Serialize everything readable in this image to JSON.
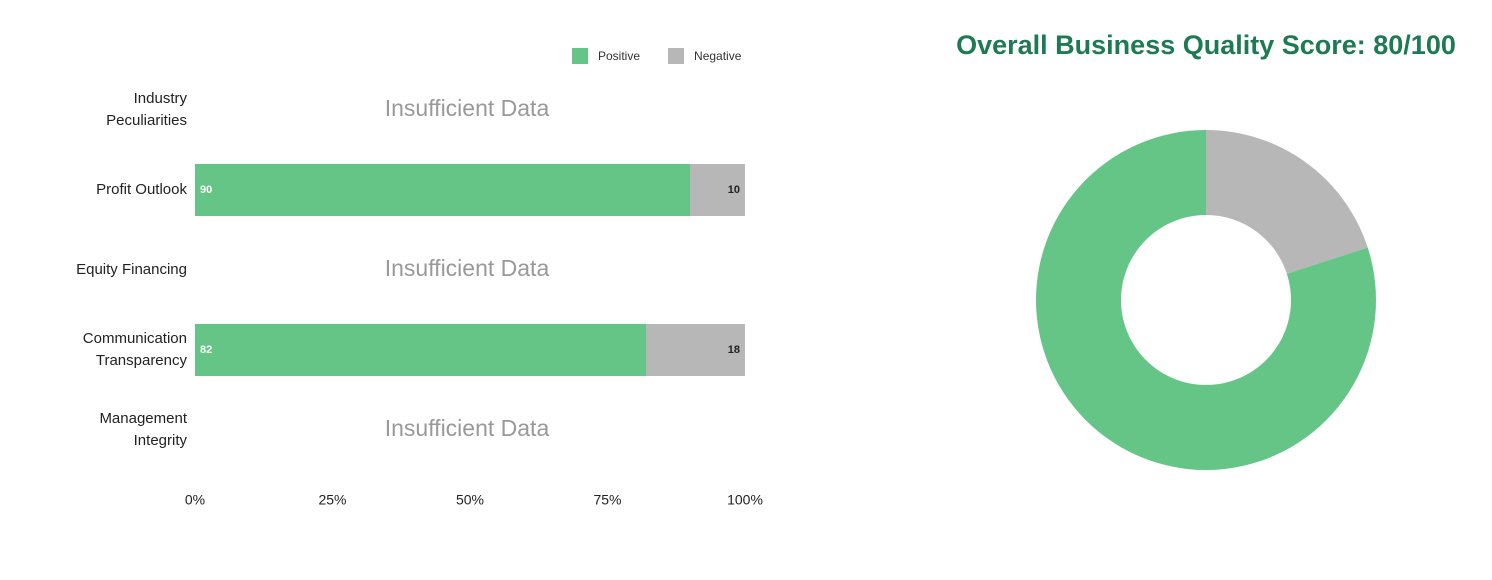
{
  "chart_data": [
    {
      "type": "stacked-bar",
      "categories": [
        "Industry Peculiarities",
        "Profit Outlook",
        "Equity Financing",
        "Communication Transparency",
        "Management Integrity"
      ],
      "series": [
        {
          "name": "Positive",
          "color": "#64c587",
          "values": [
            null,
            90,
            null,
            82,
            null
          ]
        },
        {
          "name": "Negative",
          "color": "#b7b7b7",
          "values": [
            null,
            10,
            null,
            18,
            null
          ]
        }
      ],
      "no_data_label": "Insufficient Data",
      "xlim": [
        0,
        100
      ],
      "xticks": [
        {
          "value": 0,
          "label": "0%"
        },
        {
          "value": 25,
          "label": "25%"
        },
        {
          "value": 50,
          "label": "50%"
        },
        {
          "value": 75,
          "label": "75%"
        },
        {
          "value": 100,
          "label": "100%"
        }
      ],
      "legend": "top-right"
    },
    {
      "type": "donut",
      "title": "Overall Business Quality Score: 80/100",
      "values": [
        80,
        20
      ],
      "colors": [
        "#64c587",
        "#b7b7b7"
      ]
    }
  ]
}
